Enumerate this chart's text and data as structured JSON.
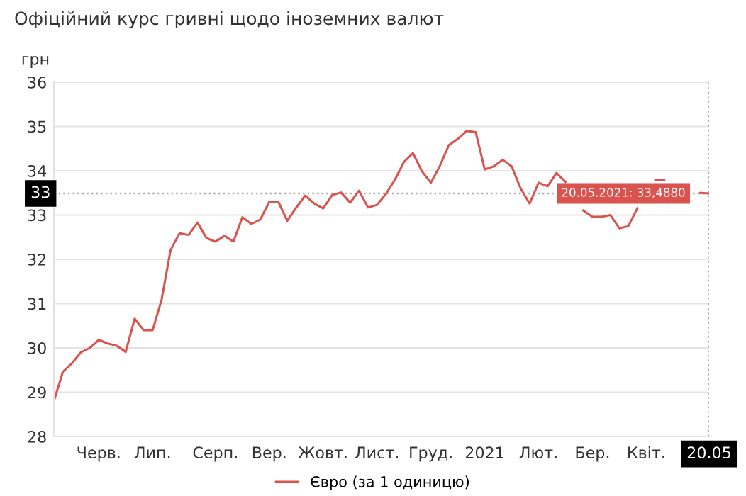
{
  "chart_data": {
    "type": "line",
    "title": "Офіційний курс гривні щодо іноземних валют",
    "ylabel": "грн",
    "categories": [
      null,
      null,
      null,
      null,
      null,
      "Черв.",
      null,
      null,
      null,
      null,
      null,
      "Лип.",
      null,
      null,
      null,
      null,
      null,
      null,
      "Серп.",
      null,
      null,
      null,
      null,
      null,
      "Вер.",
      null,
      null,
      null,
      null,
      null,
      "Жовт.",
      null,
      null,
      null,
      null,
      null,
      "Лист.",
      null,
      null,
      null,
      null,
      null,
      "Груд.",
      null,
      null,
      null,
      null,
      null,
      "2021",
      null,
      null,
      null,
      null,
      null,
      "Лют.",
      null,
      null,
      null,
      null,
      null,
      "Бер.",
      null,
      null,
      null,
      null,
      null,
      "Квіт.",
      null,
      null,
      null,
      null,
      null,
      null,
      "20.05"
    ],
    "series": [
      {
        "name": "Євро (за 1 одиницю)",
        "color": "#d9534f",
        "values": [
          28.8,
          29.46,
          29.65,
          29.9,
          30.0,
          30.18,
          30.1,
          30.05,
          29.91,
          30.66,
          30.4,
          30.4,
          31.09,
          32.21,
          32.59,
          32.55,
          32.83,
          32.48,
          32.4,
          32.53,
          32.4,
          32.95,
          32.8,
          32.9,
          33.3,
          33.3,
          32.87,
          33.17,
          33.44,
          33.26,
          33.15,
          33.45,
          33.51,
          33.28,
          33.55,
          33.17,
          33.23,
          33.48,
          33.8,
          34.2,
          34.4,
          33.99,
          33.73,
          34.11,
          34.58,
          34.72,
          34.9,
          34.87,
          34.03,
          34.1,
          34.25,
          34.1,
          33.6,
          33.26,
          33.73,
          33.65,
          33.95,
          33.75,
          null,
          33.1,
          32.96,
          32.96,
          33.0,
          32.7,
          32.75,
          33.15,
          null,
          33.79,
          33.79,
          null,
          null,
          null,
          33.5,
          33.488
        ]
      }
    ],
    "ylim": [
      28,
      36
    ],
    "yticks": [
      28,
      29,
      30,
      31,
      32,
      33,
      34,
      35,
      36
    ],
    "grid": "y",
    "legend": "bottom",
    "marker": "none",
    "line_style": "solid",
    "ref_lines": [
      {
        "axis": "y",
        "value": 33.488,
        "label": "33",
        "line_style": "dotted",
        "color": "#aaaaaa"
      },
      {
        "axis": "x",
        "value": "20.05",
        "line_style": "dotted",
        "color": "#aaaaaa"
      }
    ],
    "annotations": [
      {
        "text": "20.05.2021: 33,4880",
        "x": "20.05",
        "y": 33.488
      }
    ]
  }
}
